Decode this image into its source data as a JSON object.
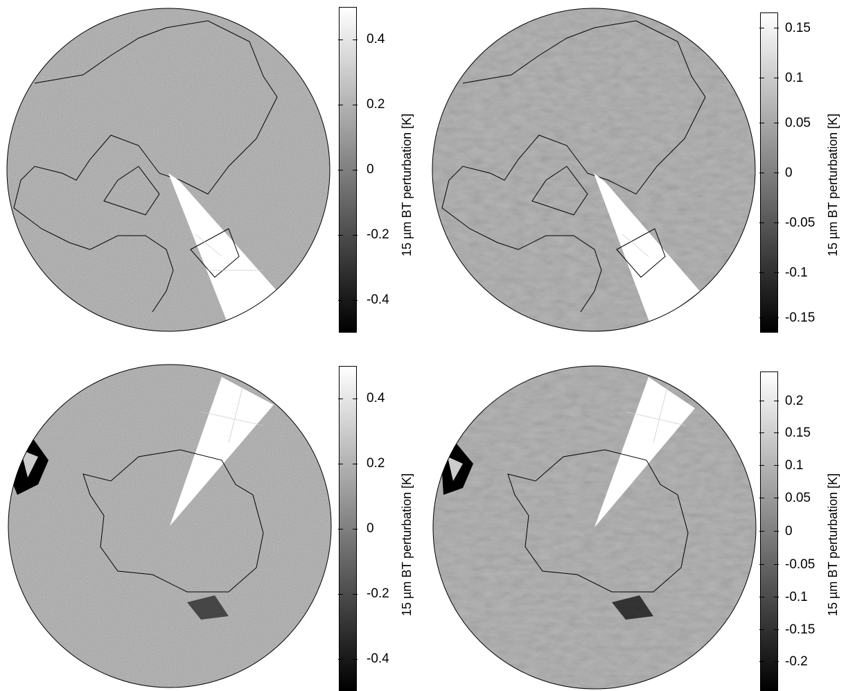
{
  "colorbar_label": "15 µm BT perturbation [K]",
  "panels": [
    {
      "hemisphere": "north",
      "colorbar": {
        "min": -0.5,
        "max": 0.5,
        "ticks": [
          0.4,
          0.2,
          0,
          -0.2,
          -0.4
        ],
        "labels": [
          "0.4",
          "0.2",
          "0",
          "-0.2",
          "-0.4"
        ]
      }
    },
    {
      "hemisphere": "north",
      "colorbar": {
        "min": -0.16,
        "max": 0.16,
        "ticks": [
          0.15,
          0.1,
          0.05,
          0,
          -0.05,
          -0.1,
          -0.15
        ],
        "labels": [
          "0.15",
          "0.1",
          "0.05",
          "0",
          "-0.05",
          "-0.1",
          "-0.15"
        ]
      }
    },
    {
      "hemisphere": "south",
      "colorbar": {
        "min": -0.5,
        "max": 0.5,
        "ticks": [
          0.4,
          0.2,
          0,
          -0.2,
          -0.4
        ],
        "labels": [
          "0.4",
          "0.2",
          "0",
          "-0.2",
          "-0.4"
        ]
      }
    },
    {
      "hemisphere": "south",
      "colorbar": {
        "min": -0.24,
        "max": 0.24,
        "ticks": [
          0.2,
          0.15,
          0.1,
          0.05,
          0,
          -0.05,
          -0.1,
          -0.15,
          -0.2
        ],
        "labels": [
          "0.2",
          "0.15",
          "0.1",
          "0.05",
          "0",
          "-0.05",
          "-0.1",
          "-0.15",
          "-0.2"
        ]
      }
    }
  ],
  "colors": {
    "gray_mid": "#a8a8a8",
    "white": "#ffffff",
    "black": "#000000"
  }
}
